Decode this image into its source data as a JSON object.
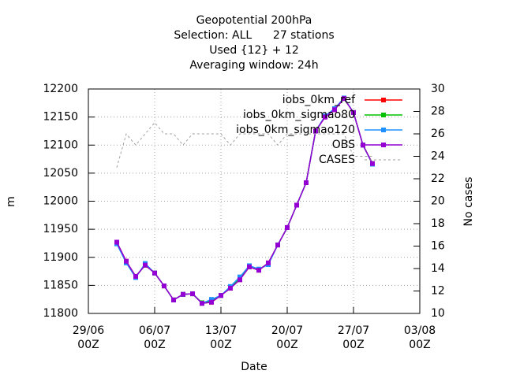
{
  "chart_data": {
    "type": "line",
    "title_lines": [
      "Geopotential 200hPa",
      "Selection: ALL      27 stations",
      "Used {12} + 12",
      "Averaging window: 24h"
    ],
    "x_label": "Date",
    "y_label": "m",
    "y2_label": "No cases",
    "x": [
      "02/07 00Z",
      "03/07 00Z",
      "04/07 00Z",
      "05/07 00Z",
      "06/07 00Z",
      "07/07 00Z",
      "08/07 00Z",
      "09/07 00Z",
      "10/07 00Z",
      "11/07 00Z",
      "12/07 00Z",
      "13/07 00Z",
      "14/07 00Z",
      "15/07 00Z",
      "16/07 00Z",
      "17/07 00Z",
      "18/07 00Z",
      "19/07 00Z",
      "20/07 00Z",
      "21/07 00Z",
      "22/07 00Z",
      "23/07 00Z",
      "24/07 00Z",
      "25/07 00Z",
      "26/07 00Z",
      "27/07 00Z",
      "28/07 00Z",
      "29/07 00Z"
    ],
    "xlim": [
      "29/06 00Z",
      "03/08 00Z"
    ],
    "xticks": [
      {
        "value": "29/06 00Z",
        "label": "29/06\n00Z"
      },
      {
        "value": "06/07 00Z",
        "label": "06/07\n00Z"
      },
      {
        "value": "13/07 00Z",
        "label": "13/07\n00Z"
      },
      {
        "value": "20/07 00Z",
        "label": "20/07\n00Z"
      },
      {
        "value": "27/07 00Z",
        "label": "27/07\n00Z"
      },
      {
        "value": "03/08 00Z",
        "label": "03/08\n00Z"
      }
    ],
    "ylim": [
      11800,
      12200
    ],
    "yticks": [
      11800,
      11850,
      11900,
      11950,
      12000,
      12050,
      12100,
      12150,
      12200
    ],
    "y2lim": [
      10,
      30
    ],
    "y2ticks": [
      10,
      12,
      14,
      16,
      18,
      20,
      22,
      24,
      26,
      28,
      30
    ],
    "grid": true,
    "legend": "top-right",
    "series": [
      {
        "name": "iobs_0km_ref",
        "color": "#ff0000",
        "values": [
          11927,
          11893,
          11866,
          11886,
          11872,
          11849,
          11824,
          11834,
          11835,
          11818,
          11820,
          11832,
          11845,
          11860,
          11883,
          11877,
          11890,
          11922,
          11953,
          11993,
          12033,
          12125,
          12150,
          12163,
          12183,
          12158,
          12100,
          12067
        ]
      },
      {
        "name": "iobs_0km_sigmao80",
        "color": "#00c000",
        "values": [
          11926,
          11892,
          11866,
          11886,
          11872,
          11849,
          11824,
          11834,
          11835,
          11819,
          11822,
          11832,
          11846,
          11862,
          11884,
          11878,
          11889,
          11922,
          11953,
          11993,
          12033,
          12125,
          12151,
          12164,
          12183,
          12158,
          12100,
          12067
        ]
      },
      {
        "name": "iobs_0km_sigmao120",
        "color": "#1e90ff",
        "values": [
          11924,
          11890,
          11864,
          11889,
          11872,
          11849,
          11824,
          11834,
          11835,
          11818,
          11825,
          11832,
          11848,
          11865,
          11885,
          11879,
          11887,
          11922,
          11953,
          11993,
          12033,
          12125,
          12152,
          12165,
          12184,
          12158,
          12100,
          12066
        ]
      },
      {
        "name": "OBS",
        "color": "#9400d3",
        "values": [
          11927,
          11893,
          11866,
          11886,
          11872,
          11849,
          11824,
          11834,
          11835,
          11818,
          11820,
          11832,
          11845,
          11860,
          11883,
          11877,
          11890,
          11922,
          11953,
          11993,
          12033,
          12125,
          12150,
          12163,
          12183,
          12158,
          12100,
          12067
        ]
      },
      {
        "name": "CASES",
        "color": "#a0a0a0",
        "axis": "y2",
        "dashed": true,
        "values": [
          23,
          26,
          25,
          26,
          27,
          26,
          26,
          25,
          26,
          26,
          26,
          26,
          25,
          26,
          26,
          26,
          26,
          25,
          26,
          26,
          26,
          26,
          26,
          26,
          26,
          24,
          24,
          24
        ]
      }
    ]
  }
}
